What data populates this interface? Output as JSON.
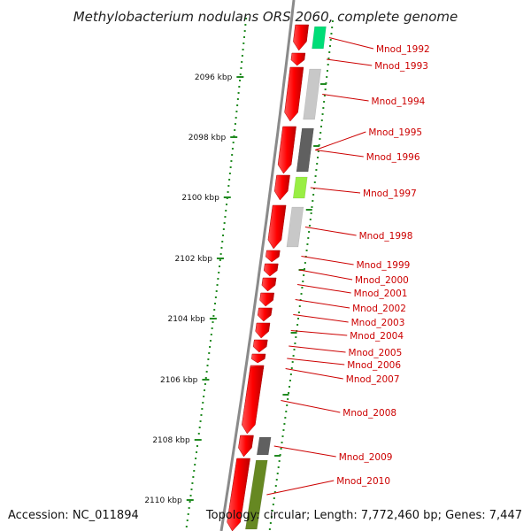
{
  "title": "Methylobacterium nodulans ORS 2060, complete genome",
  "accession_text": "Accession: NC_011894",
  "topology_text": "Topology: circular; Length: 7,772,460 bp; Genes: 7,447",
  "colors": {
    "backbone": "#8a8a8a",
    "gc_dots": "#228b22",
    "gene_forward": "#ff0000",
    "label": "#cc0000",
    "cog_light_gray": "#c8c8c8",
    "cog_dark_gray": "#606060",
    "cog_green": "#00dd77",
    "cog_lime": "#99ee44",
    "cog_olive": "#668822"
  },
  "chart_data": {
    "type": "genome-map-segment",
    "ticks": [
      {
        "label": "2096 kbp"
      },
      {
        "label": "2098 kbp"
      },
      {
        "label": "2100 kbp"
      },
      {
        "label": "2102 kbp"
      },
      {
        "label": "2104 kbp"
      },
      {
        "label": "2106 kbp"
      },
      {
        "label": "2108 kbp"
      },
      {
        "label": "2110 kbp"
      }
    ],
    "genes": [
      {
        "name": "Mnod_1992",
        "cog": "green"
      },
      {
        "name": "Mnod_1993",
        "cog": "none"
      },
      {
        "name": "Mnod_1994",
        "cog": "light_gray"
      },
      {
        "name": "Mnod_1995",
        "cog": "dark_gray"
      },
      {
        "name": "Mnod_1996",
        "cog": "dark_gray"
      },
      {
        "name": "Mnod_1997",
        "cog": "lime"
      },
      {
        "name": "Mnod_1998",
        "cog": "light_gray"
      },
      {
        "name": "Mnod_1999",
        "cog": "none"
      },
      {
        "name": "Mnod_2000",
        "cog": "none"
      },
      {
        "name": "Mnod_2001",
        "cog": "none"
      },
      {
        "name": "Mnod_2002",
        "cog": "none"
      },
      {
        "name": "Mnod_2003",
        "cog": "none"
      },
      {
        "name": "Mnod_2004",
        "cog": "none"
      },
      {
        "name": "Mnod_2005",
        "cog": "none"
      },
      {
        "name": "Mnod_2006",
        "cog": "none"
      },
      {
        "name": "Mnod_2007",
        "cog": "none"
      },
      {
        "name": "Mnod_2008",
        "cog": "none"
      },
      {
        "name": "Mnod_2009",
        "cog": "dark_gray"
      },
      {
        "name": "Mnod_2010",
        "cog": "olive"
      }
    ]
  }
}
